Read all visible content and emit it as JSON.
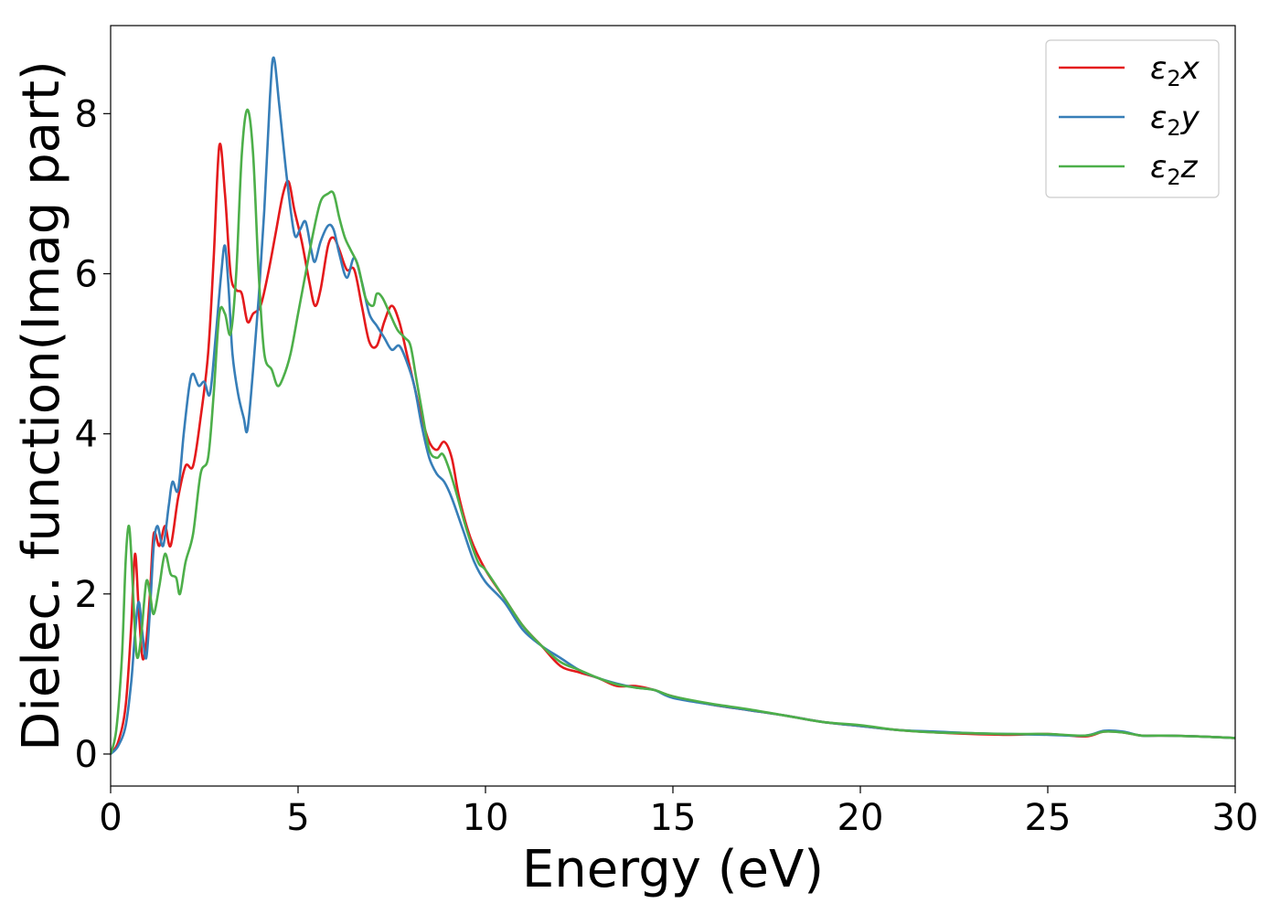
{
  "chart_data": {
    "type": "line",
    "title": "",
    "xlabel": "Energy (eV)",
    "ylabel": "Dielec. function(Imag part)",
    "xlim": [
      0,
      30
    ],
    "ylim": [
      -0.4,
      9.1
    ],
    "xticks": [
      0,
      5,
      10,
      15,
      20,
      25,
      30
    ],
    "yticks": [
      0,
      2,
      4,
      6,
      8
    ],
    "grid": false,
    "legend_position": "top-right",
    "series": [
      {
        "name_base": "ε",
        "name_sub": "2",
        "name_suffix": "x",
        "color": "#e41a1c",
        "points": [
          [
            0,
            0.0
          ],
          [
            0.2,
            0.15
          ],
          [
            0.4,
            0.6
          ],
          [
            0.55,
            1.6
          ],
          [
            0.65,
            2.5
          ],
          [
            0.75,
            1.8
          ],
          [
            0.85,
            1.2
          ],
          [
            0.95,
            1.4
          ],
          [
            1.05,
            2.0
          ],
          [
            1.15,
            2.75
          ],
          [
            1.3,
            2.6
          ],
          [
            1.45,
            2.85
          ],
          [
            1.6,
            2.6
          ],
          [
            1.8,
            3.2
          ],
          [
            2.0,
            3.6
          ],
          [
            2.2,
            3.6
          ],
          [
            2.4,
            4.2
          ],
          [
            2.6,
            5.0
          ],
          [
            2.75,
            6.2
          ],
          [
            2.9,
            7.6
          ],
          [
            3.05,
            7.0
          ],
          [
            3.2,
            6.0
          ],
          [
            3.35,
            5.8
          ],
          [
            3.5,
            5.75
          ],
          [
            3.65,
            5.4
          ],
          [
            3.8,
            5.5
          ],
          [
            4.0,
            5.6
          ],
          [
            4.2,
            6.0
          ],
          [
            4.4,
            6.5
          ],
          [
            4.6,
            7.0
          ],
          [
            4.75,
            7.15
          ],
          [
            4.9,
            6.8
          ],
          [
            5.1,
            6.4
          ],
          [
            5.3,
            5.9
          ],
          [
            5.45,
            5.6
          ],
          [
            5.6,
            5.8
          ],
          [
            5.8,
            6.35
          ],
          [
            5.95,
            6.45
          ],
          [
            6.1,
            6.3
          ],
          [
            6.3,
            6.05
          ],
          [
            6.5,
            6.05
          ],
          [
            6.7,
            5.6
          ],
          [
            6.9,
            5.15
          ],
          [
            7.1,
            5.1
          ],
          [
            7.3,
            5.4
          ],
          [
            7.5,
            5.6
          ],
          [
            7.7,
            5.4
          ],
          [
            7.9,
            5.0
          ],
          [
            8.1,
            4.6
          ],
          [
            8.3,
            4.2
          ],
          [
            8.5,
            3.9
          ],
          [
            8.7,
            3.8
          ],
          [
            8.9,
            3.9
          ],
          [
            9.1,
            3.7
          ],
          [
            9.3,
            3.2
          ],
          [
            9.6,
            2.7
          ],
          [
            10.0,
            2.3
          ],
          [
            10.5,
            1.95
          ],
          [
            11.0,
            1.6
          ],
          [
            11.5,
            1.35
          ],
          [
            12.0,
            1.1
          ],
          [
            12.5,
            1.02
          ],
          [
            13.0,
            0.95
          ],
          [
            13.5,
            0.85
          ],
          [
            14.0,
            0.85
          ],
          [
            14.5,
            0.8
          ],
          [
            15.0,
            0.72
          ],
          [
            16.0,
            0.62
          ],
          [
            17.0,
            0.55
          ],
          [
            18.0,
            0.48
          ],
          [
            19.0,
            0.4
          ],
          [
            20.0,
            0.35
          ],
          [
            21.0,
            0.3
          ],
          [
            22.0,
            0.27
          ],
          [
            23.0,
            0.25
          ],
          [
            24.0,
            0.24
          ],
          [
            25.0,
            0.25
          ],
          [
            26.0,
            0.22
          ],
          [
            26.5,
            0.28
          ],
          [
            27.0,
            0.27
          ],
          [
            27.5,
            0.23
          ],
          [
            28.0,
            0.23
          ],
          [
            29.0,
            0.22
          ],
          [
            30.0,
            0.2
          ]
        ]
      },
      {
        "name_base": "ε",
        "name_sub": "2",
        "name_suffix": "y",
        "color": "#377eb8",
        "points": [
          [
            0,
            0.0
          ],
          [
            0.2,
            0.1
          ],
          [
            0.4,
            0.35
          ],
          [
            0.55,
            0.9
          ],
          [
            0.65,
            1.5
          ],
          [
            0.75,
            1.9
          ],
          [
            0.85,
            1.5
          ],
          [
            0.95,
            1.2
          ],
          [
            1.05,
            1.8
          ],
          [
            1.15,
            2.6
          ],
          [
            1.25,
            2.85
          ],
          [
            1.4,
            2.6
          ],
          [
            1.55,
            3.1
          ],
          [
            1.65,
            3.4
          ],
          [
            1.8,
            3.3
          ],
          [
            1.95,
            4.0
          ],
          [
            2.1,
            4.6
          ],
          [
            2.2,
            4.75
          ],
          [
            2.35,
            4.6
          ],
          [
            2.5,
            4.65
          ],
          [
            2.65,
            4.5
          ],
          [
            2.8,
            5.2
          ],
          [
            2.95,
            6.0
          ],
          [
            3.05,
            6.35
          ],
          [
            3.15,
            5.8
          ],
          [
            3.25,
            5.0
          ],
          [
            3.4,
            4.5
          ],
          [
            3.55,
            4.2
          ],
          [
            3.65,
            4.05
          ],
          [
            3.8,
            4.8
          ],
          [
            3.95,
            5.7
          ],
          [
            4.1,
            6.8
          ],
          [
            4.25,
            8.2
          ],
          [
            4.35,
            8.7
          ],
          [
            4.5,
            8.1
          ],
          [
            4.7,
            7.2
          ],
          [
            4.9,
            6.5
          ],
          [
            5.05,
            6.55
          ],
          [
            5.2,
            6.65
          ],
          [
            5.35,
            6.3
          ],
          [
            5.45,
            6.15
          ],
          [
            5.6,
            6.4
          ],
          [
            5.8,
            6.6
          ],
          [
            5.95,
            6.55
          ],
          [
            6.1,
            6.25
          ],
          [
            6.3,
            5.95
          ],
          [
            6.5,
            6.2
          ],
          [
            6.7,
            5.9
          ],
          [
            6.9,
            5.5
          ],
          [
            7.1,
            5.35
          ],
          [
            7.3,
            5.2
          ],
          [
            7.5,
            5.05
          ],
          [
            7.7,
            5.1
          ],
          [
            7.9,
            4.9
          ],
          [
            8.1,
            4.6
          ],
          [
            8.3,
            4.1
          ],
          [
            8.5,
            3.7
          ],
          [
            8.7,
            3.5
          ],
          [
            8.9,
            3.4
          ],
          [
            9.1,
            3.2
          ],
          [
            9.4,
            2.8
          ],
          [
            9.7,
            2.4
          ],
          [
            10.0,
            2.15
          ],
          [
            10.5,
            1.9
          ],
          [
            11.0,
            1.55
          ],
          [
            11.5,
            1.35
          ],
          [
            12.0,
            1.2
          ],
          [
            12.5,
            1.05
          ],
          [
            13.0,
            0.95
          ],
          [
            13.5,
            0.88
          ],
          [
            14.0,
            0.83
          ],
          [
            14.5,
            0.8
          ],
          [
            15.0,
            0.7
          ],
          [
            16.0,
            0.62
          ],
          [
            17.0,
            0.55
          ],
          [
            18.0,
            0.48
          ],
          [
            19.0,
            0.4
          ],
          [
            20.0,
            0.35
          ],
          [
            21.0,
            0.3
          ],
          [
            22.0,
            0.28
          ],
          [
            23.0,
            0.26
          ],
          [
            24.0,
            0.25
          ],
          [
            25.0,
            0.24
          ],
          [
            26.0,
            0.23
          ],
          [
            26.5,
            0.29
          ],
          [
            27.0,
            0.28
          ],
          [
            27.5,
            0.23
          ],
          [
            28.0,
            0.23
          ],
          [
            29.0,
            0.22
          ],
          [
            30.0,
            0.2
          ]
        ]
      },
      {
        "name_base": "ε",
        "name_sub": "2",
        "name_suffix": "z",
        "color": "#4daf4a",
        "points": [
          [
            0,
            0.0
          ],
          [
            0.15,
            0.3
          ],
          [
            0.3,
            1.2
          ],
          [
            0.4,
            2.4
          ],
          [
            0.48,
            2.85
          ],
          [
            0.55,
            2.5
          ],
          [
            0.65,
            1.5
          ],
          [
            0.72,
            1.2
          ],
          [
            0.82,
            1.5
          ],
          [
            0.95,
            2.15
          ],
          [
            1.05,
            2.0
          ],
          [
            1.15,
            1.75
          ],
          [
            1.3,
            2.1
          ],
          [
            1.45,
            2.5
          ],
          [
            1.6,
            2.25
          ],
          [
            1.75,
            2.2
          ],
          [
            1.85,
            2.0
          ],
          [
            2.0,
            2.4
          ],
          [
            2.2,
            2.75
          ],
          [
            2.4,
            3.5
          ],
          [
            2.6,
            3.7
          ],
          [
            2.75,
            4.5
          ],
          [
            2.9,
            5.5
          ],
          [
            3.05,
            5.5
          ],
          [
            3.2,
            5.25
          ],
          [
            3.35,
            6.0
          ],
          [
            3.5,
            7.5
          ],
          [
            3.65,
            8.05
          ],
          [
            3.8,
            7.5
          ],
          [
            3.95,
            6.0
          ],
          [
            4.1,
            5.0
          ],
          [
            4.3,
            4.8
          ],
          [
            4.45,
            4.6
          ],
          [
            4.6,
            4.7
          ],
          [
            4.8,
            5.0
          ],
          [
            5.0,
            5.5
          ],
          [
            5.2,
            6.0
          ],
          [
            5.4,
            6.5
          ],
          [
            5.6,
            6.9
          ],
          [
            5.8,
            7.0
          ],
          [
            5.95,
            7.0
          ],
          [
            6.1,
            6.7
          ],
          [
            6.25,
            6.45
          ],
          [
            6.4,
            6.3
          ],
          [
            6.6,
            6.1
          ],
          [
            6.8,
            5.7
          ],
          [
            7.0,
            5.6
          ],
          [
            7.1,
            5.75
          ],
          [
            7.25,
            5.7
          ],
          [
            7.45,
            5.5
          ],
          [
            7.65,
            5.3
          ],
          [
            7.85,
            5.2
          ],
          [
            8.0,
            5.1
          ],
          [
            8.15,
            4.7
          ],
          [
            8.3,
            4.3
          ],
          [
            8.5,
            3.8
          ],
          [
            8.7,
            3.7
          ],
          [
            8.85,
            3.75
          ],
          [
            9.0,
            3.6
          ],
          [
            9.2,
            3.3
          ],
          [
            9.5,
            2.8
          ],
          [
            9.8,
            2.4
          ],
          [
            10.0,
            2.3
          ],
          [
            10.5,
            1.95
          ],
          [
            11.0,
            1.6
          ],
          [
            11.5,
            1.35
          ],
          [
            12.0,
            1.15
          ],
          [
            12.5,
            1.05
          ],
          [
            13.0,
            0.95
          ],
          [
            13.5,
            0.87
          ],
          [
            14.0,
            0.83
          ],
          [
            14.5,
            0.8
          ],
          [
            15.0,
            0.72
          ],
          [
            16.0,
            0.63
          ],
          [
            17.0,
            0.56
          ],
          [
            18.0,
            0.48
          ],
          [
            19.0,
            0.4
          ],
          [
            20.0,
            0.36
          ],
          [
            21.0,
            0.3
          ],
          [
            22.0,
            0.27
          ],
          [
            23.0,
            0.26
          ],
          [
            24.0,
            0.25
          ],
          [
            25.0,
            0.25
          ],
          [
            26.0,
            0.23
          ],
          [
            26.5,
            0.28
          ],
          [
            27.0,
            0.27
          ],
          [
            27.5,
            0.23
          ],
          [
            28.0,
            0.23
          ],
          [
            29.0,
            0.22
          ],
          [
            30.0,
            0.2
          ]
        ]
      }
    ]
  }
}
